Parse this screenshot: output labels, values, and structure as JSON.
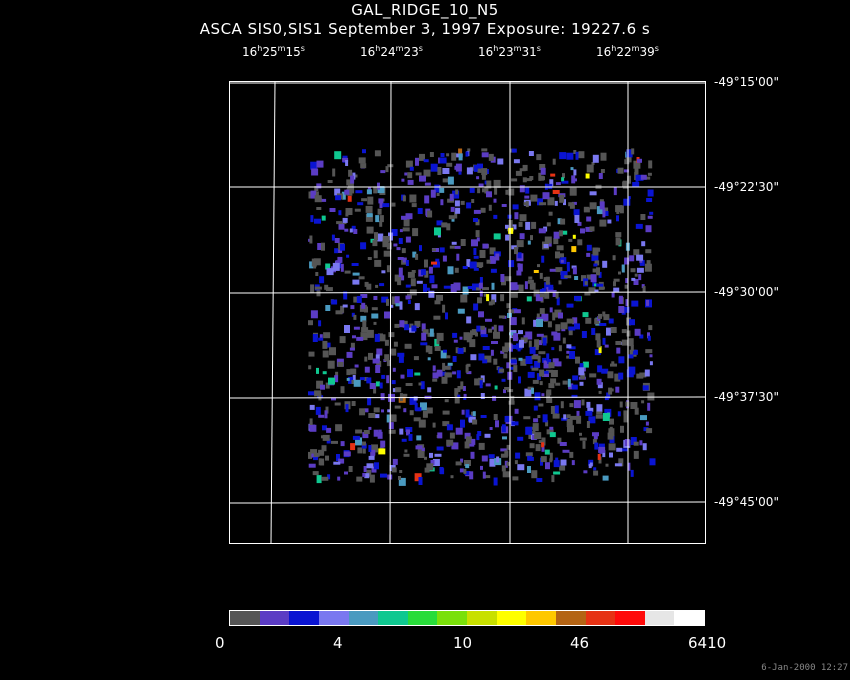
{
  "title": "GAL_RIDGE_10_N5",
  "subtitle": "ASCA SIS0,SIS1 September 3, 1997 Exposure: 19227.6 s",
  "ra_labels": [
    {
      "h": "16",
      "m": "25",
      "s": "15"
    },
    {
      "h": "16",
      "m": "24",
      "s": "23"
    },
    {
      "h": "16",
      "m": "23",
      "s": "31"
    },
    {
      "h": "16",
      "m": "22",
      "s": "39"
    }
  ],
  "dec_labels": [
    "-49°15'00\"",
    "-49°22'30\"",
    "-49°30'00\"",
    "-49°37'30\"",
    "-49°45'00\""
  ],
  "colorbar": {
    "colors": [
      "#555555",
      "#5b3cc4",
      "#0a14d2",
      "#7a78f0",
      "#4a9ac0",
      "#0fc890",
      "#28dc3a",
      "#7ae00a",
      "#c8e000",
      "#ffff00",
      "#ffc800",
      "#b46414",
      "#e63214",
      "#ff0a0a",
      "#e6e6e6",
      "#ffffff"
    ],
    "labels": [
      "0",
      "4",
      "10",
      "46",
      "6410"
    ]
  },
  "timestamp": "6-Jan-2000 12:27"
}
